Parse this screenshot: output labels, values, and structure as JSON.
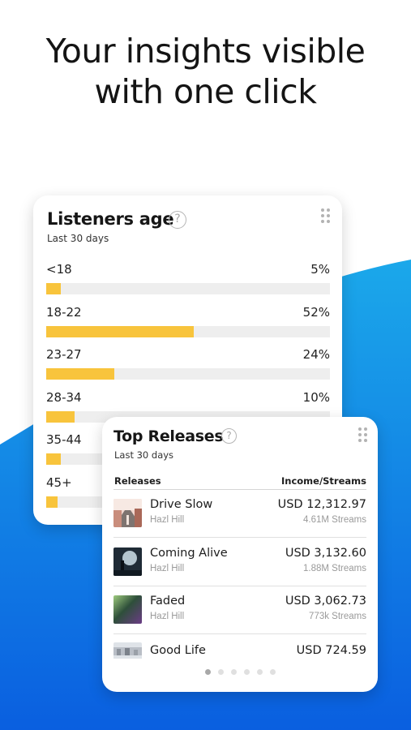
{
  "headline": {
    "line1": "Your insights visible",
    "line2": "with one click"
  },
  "colors": {
    "bar_fill": "#f8c43c",
    "bar_track": "#eeeeee",
    "wave_top": "#1ba8ea",
    "wave_bottom": "#0a5fe0"
  },
  "age_card": {
    "title": "Listeners age",
    "help_icon": "question-circle-icon",
    "drag_icon": "drag-handle-icon",
    "subtitle": "Last 30 days",
    "rows": [
      {
        "label": "<18",
        "pct_text": "5%",
        "value": 5
      },
      {
        "label": "18-22",
        "pct_text": "52%",
        "value": 52
      },
      {
        "label": "23-27",
        "pct_text": "24%",
        "value": 24
      },
      {
        "label": "28-34",
        "pct_text": "10%",
        "value": 10
      },
      {
        "label": "35-44",
        "pct_text": "",
        "value": 5
      },
      {
        "label": "45+",
        "pct_text": "",
        "value": 4
      }
    ]
  },
  "releases_card": {
    "title": "Top Releases",
    "help_icon": "question-circle-icon",
    "drag_icon": "drag-handle-icon",
    "subtitle": "Last 30 days",
    "col_left": "Releases",
    "col_right": "Income/Streams",
    "rows": [
      {
        "title": "Drive Slow",
        "artist": "Hazl Hill",
        "income": "USD 12,312.97",
        "streams": "4.61M Streams",
        "cover": "cover-road-icon"
      },
      {
        "title": "Coming Alive",
        "artist": "Hazl Hill",
        "income": "USD 3,132.60",
        "streams": "1.88M Streams",
        "cover": "cover-night-icon"
      },
      {
        "title": "Faded",
        "artist": "Hazl Hill",
        "income": "USD 3,062.73",
        "streams": "773k Streams",
        "cover": "cover-gradient-icon"
      }
    ],
    "partial_row": {
      "title": "Good Life",
      "income": "USD 724.59",
      "cover": "cover-city-icon"
    },
    "pagination": {
      "count": 6,
      "active": 0
    }
  }
}
